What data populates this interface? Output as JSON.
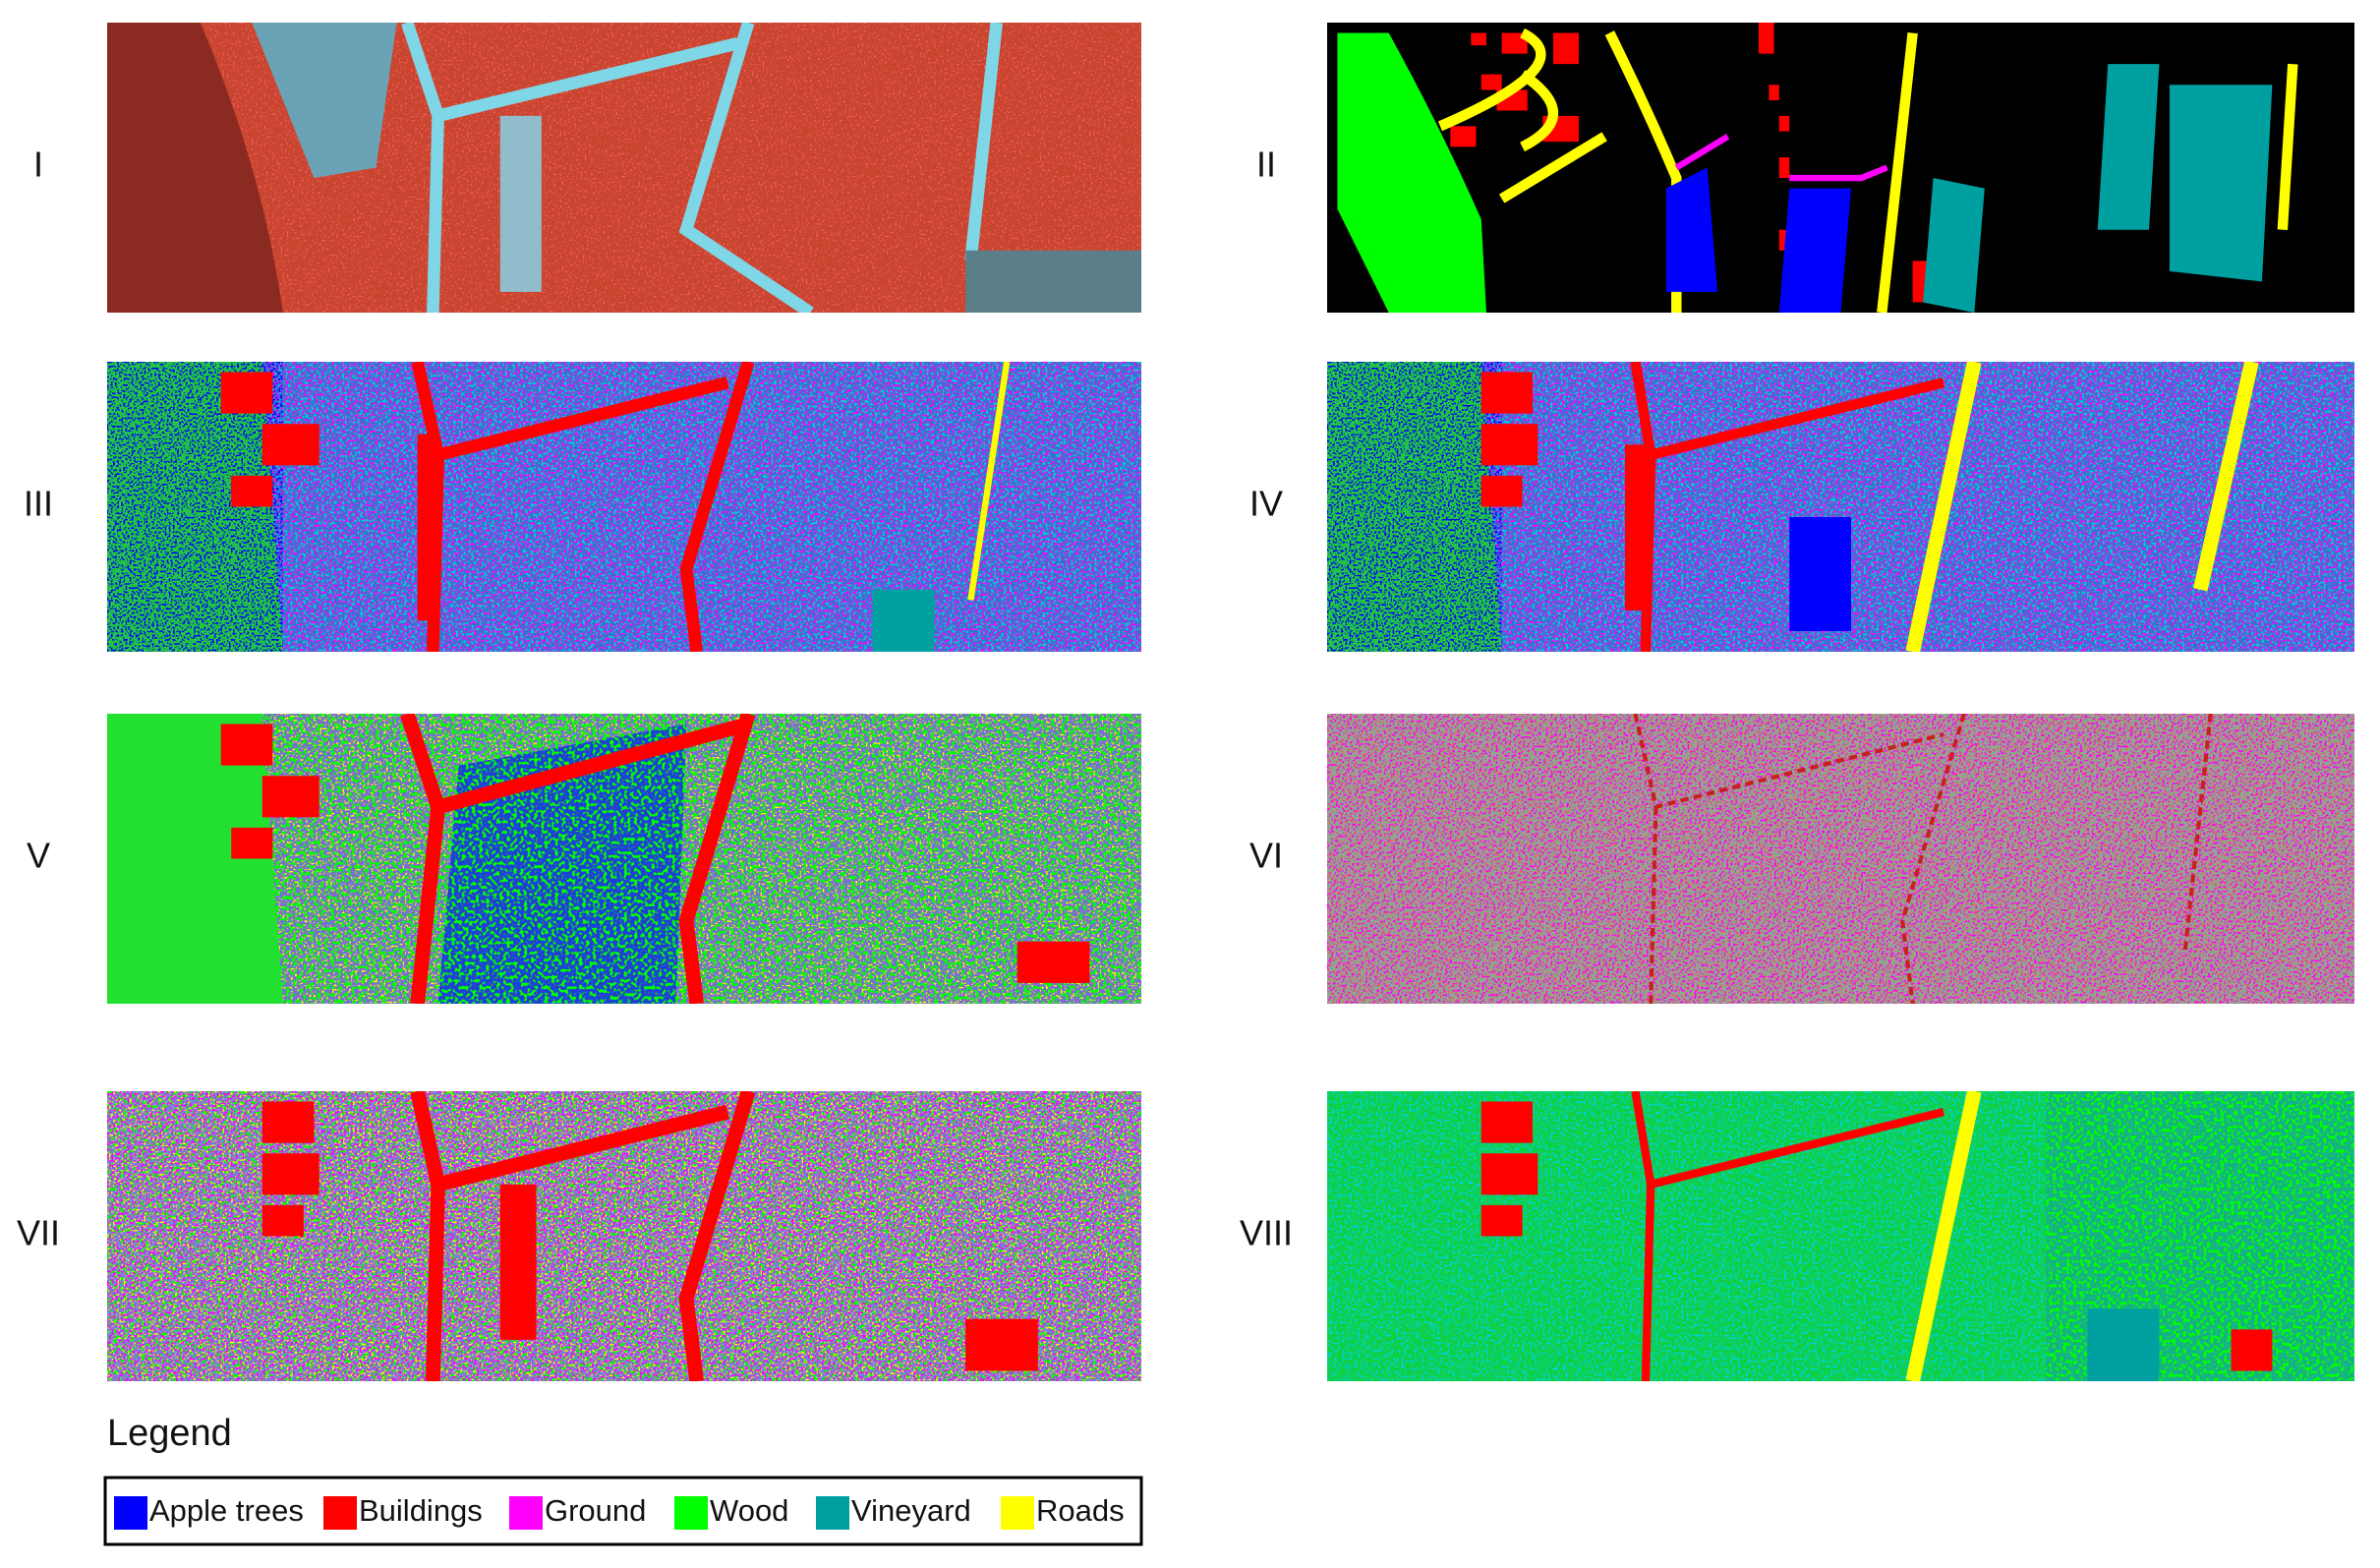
{
  "panels": [
    {
      "label": "I"
    },
    {
      "label": "II"
    },
    {
      "label": "III"
    },
    {
      "label": "IV"
    },
    {
      "label": "V"
    },
    {
      "label": "VI"
    },
    {
      "label": "VII"
    },
    {
      "label": "VIII"
    }
  ],
  "legend": {
    "title": "Legend",
    "items": [
      {
        "name": "Apple trees",
        "color": "#0000ff"
      },
      {
        "name": "Buildings",
        "color": "#ff0000"
      },
      {
        "name": "Ground",
        "color": "#ff00ff"
      },
      {
        "name": "Wood",
        "color": "#00ff00"
      },
      {
        "name": "Vineyard",
        "color": "#00a0a0"
      },
      {
        "name": "Roads",
        "color": "#ffff00"
      }
    ]
  }
}
